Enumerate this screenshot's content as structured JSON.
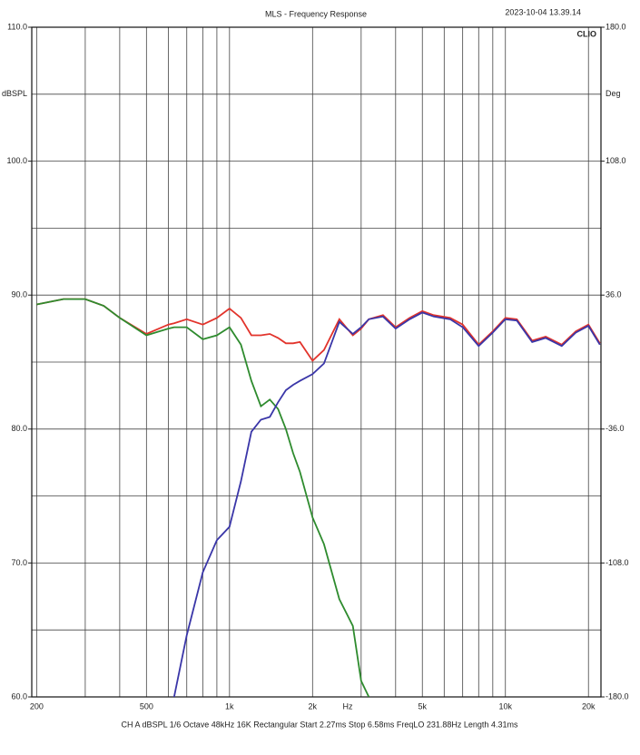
{
  "chart_data": {
    "type": "line",
    "title": "MLS - Frequency Response",
    "timestamp": "2023-10-04 13.39.14",
    "brand": "CLIO",
    "ylabel": "dBSPL",
    "y2label": "Deg",
    "xlabel": "Hz",
    "footer": "CH A   dBSPL   1/6 Octave   48kHz   16K   Rectangular   Start 2.27ms   Stop 6.58ms   FreqLO 231.88Hz   Length 4.31ms",
    "xscale": "log",
    "grid": true,
    "xlim": [
      192,
      22200
    ],
    "ylim": [
      60,
      110
    ],
    "y2lim": [
      -180,
      180
    ],
    "xticks": [
      200,
      500,
      {
        "value": 1000,
        "label": "1k"
      },
      {
        "value": 2000,
        "label": "2k"
      },
      {
        "value": 5000,
        "label": "5k"
      },
      {
        "value": 10000,
        "label": "10k"
      },
      {
        "value": 20000,
        "label": "20k"
      }
    ],
    "xminor_ticks": [
      300,
      400,
      600,
      700,
      800,
      900,
      3000,
      4000,
      6000,
      7000,
      8000,
      9000
    ],
    "yticks": [
      {
        "value": 60,
        "label": "60.0"
      },
      {
        "value": 70,
        "label": "70.0"
      },
      {
        "value": 80,
        "label": "80.0"
      },
      {
        "value": 90,
        "label": "90.0"
      },
      {
        "value": 100,
        "label": "100.0"
      },
      {
        "value": 110,
        "label": "110.0"
      }
    ],
    "yminor_ticks": [
      65,
      75,
      85,
      95,
      105
    ],
    "y2ticks": [
      {
        "value": -180,
        "label": "-180.0"
      },
      {
        "value": -108,
        "label": "-108.0"
      },
      {
        "value": -36,
        "label": "-36.0"
      },
      {
        "value": 36,
        "label": "36.0"
      },
      {
        "value": 108,
        "label": "108.0"
      },
      {
        "value": 180,
        "label": "180.0"
      }
    ],
    "x": [
      200,
      250,
      300,
      350,
      400,
      500,
      600,
      630,
      700,
      800,
      900,
      1000,
      1100,
      1200,
      1300,
      1400,
      1500,
      1600,
      1700,
      1800,
      2000,
      2200,
      2500,
      2800,
      3000,
      3200,
      3600,
      4000,
      4500,
      5000,
      5500,
      6300,
      7000,
      8000,
      9000,
      10000,
      11000,
      12500,
      14000,
      16000,
      18000,
      20000,
      22000
    ],
    "series": [
      {
        "color": "#e2332b",
        "values": [
          89.3,
          89.7,
          89.7,
          89.2,
          88.3,
          87.1,
          87.8,
          87.9,
          88.2,
          87.8,
          88.3,
          89.0,
          88.3,
          87.0,
          87.0,
          87.1,
          86.8,
          86.4,
          86.4,
          86.5,
          85.1,
          85.9,
          88.2,
          87.0,
          87.5,
          88.2,
          88.5,
          87.6,
          88.3,
          88.8,
          88.5,
          88.3,
          87.8,
          86.3,
          87.3,
          88.3,
          88.2,
          86.6,
          86.9,
          86.3,
          87.3,
          87.8,
          86.4
        ]
      },
      {
        "color": "#2e8b2e",
        "values": [
          89.3,
          89.7,
          89.7,
          89.2,
          88.3,
          87.0,
          87.5,
          87.6,
          87.6,
          86.7,
          87.0,
          87.6,
          86.3,
          83.6,
          81.7,
          82.2,
          81.5,
          80.0,
          78.2,
          76.8,
          73.4,
          71.4,
          67.3,
          65.3,
          61.2,
          60.0,
          null,
          null,
          null,
          null,
          null,
          null,
          null,
          null,
          null,
          null,
          null,
          null,
          null,
          null,
          null,
          null,
          null
        ]
      },
      {
        "color": "#3a36a8",
        "values": [
          null,
          null,
          null,
          null,
          null,
          null,
          null,
          60,
          64.6,
          69.3,
          71.7,
          72.7,
          76.1,
          79.8,
          80.7,
          80.9,
          82.0,
          82.9,
          83.3,
          83.6,
          84.1,
          84.9,
          88.0,
          87.1,
          87.6,
          88.2,
          88.4,
          87.5,
          88.2,
          88.7,
          88.4,
          88.2,
          87.6,
          86.2,
          87.2,
          88.2,
          88.1,
          86.5,
          86.8,
          86.2,
          87.2,
          87.7,
          86.3
        ]
      }
    ]
  }
}
